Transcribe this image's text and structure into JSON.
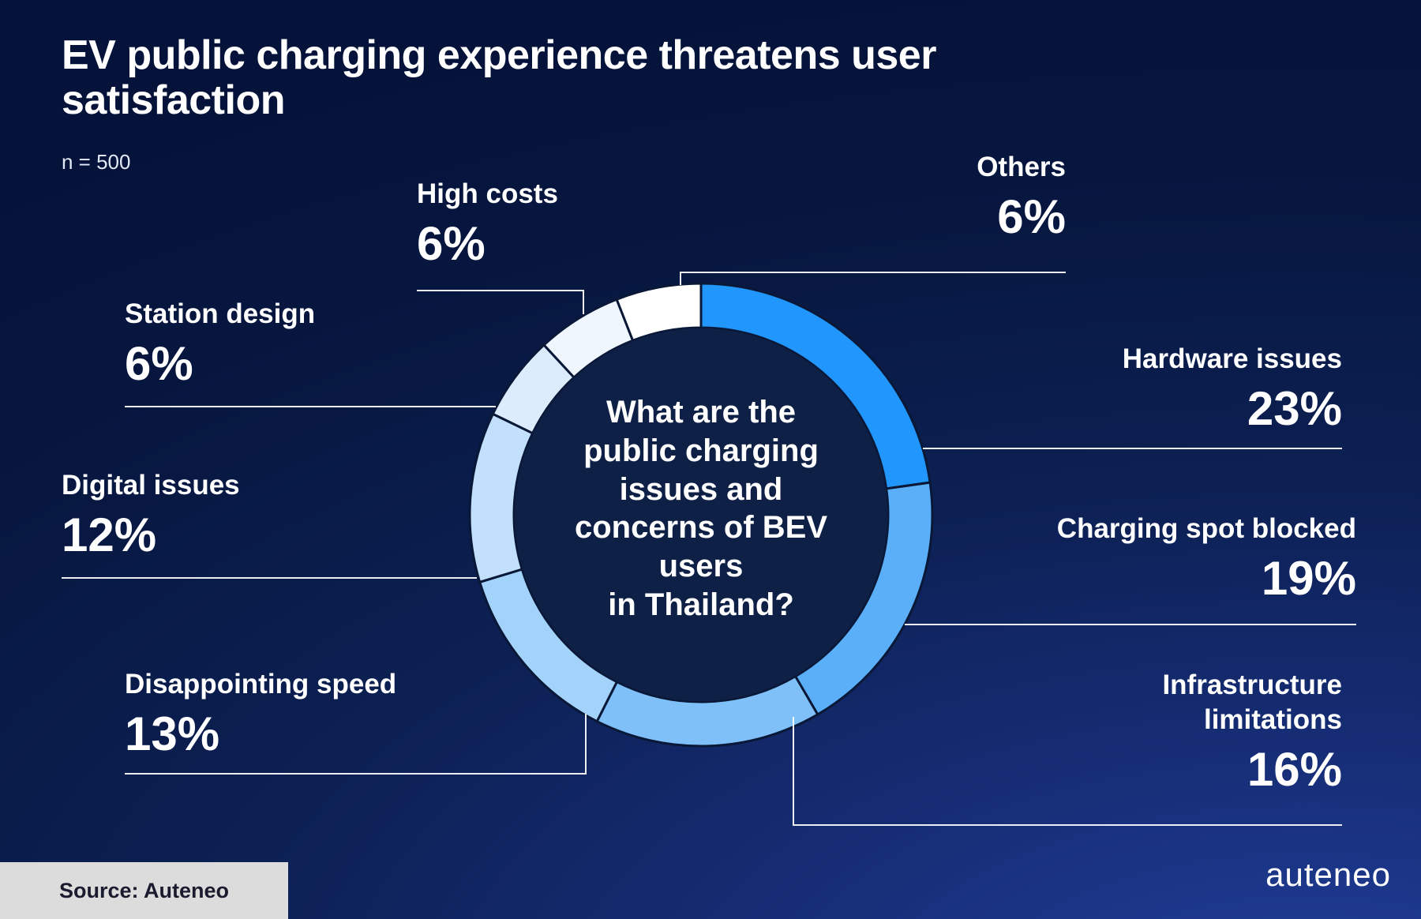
{
  "header": {
    "title": "EV public charging experience threatens user satisfaction",
    "sample_size": "n = 500"
  },
  "center_question": "What are the\npublic charging\nissues and\nconcerns of BEV\nusers\nin Thailand?",
  "footer": {
    "source": "Source: Auteneo",
    "brand_logo": "auteneo"
  },
  "colors": {
    "background_dark": "#05133a",
    "background_bright": "#22419d",
    "segment_border": "#0a1838",
    "inner_disc": "#0f2047",
    "text": "#ffffff",
    "leader_line": "#ffffff",
    "source_box_bg": "#dcdcdc",
    "source_box_text": "#1b1b2f"
  },
  "chart_data": {
    "type": "pie",
    "subtype": "donut",
    "title": "What are the public charging issues and concerns of BEV users in Thailand?",
    "sample_size": 500,
    "start_angle_deg": 0,
    "direction": "clockwise",
    "legend_position": "around-chart-callouts",
    "segments": [
      {
        "label": "Hardware issues",
        "value": 23,
        "pct_label": "23%",
        "color": "#2196FC"
      },
      {
        "label": "Charging spot blocked",
        "value": 19,
        "pct_label": "19%",
        "color": "#5BAEF8"
      },
      {
        "label": "Infrastructure limitations",
        "value": 16,
        "pct_label": "16%",
        "color": "#7FC0F9"
      },
      {
        "label": "Disappointing speed",
        "value": 13,
        "pct_label": "13%",
        "color": "#A3D2FA"
      },
      {
        "label": "Digital issues",
        "value": 12,
        "pct_label": "12%",
        "color": "#C2E0FB"
      },
      {
        "label": "Station design",
        "value": 6,
        "pct_label": "6%",
        "color": "#DCECFD"
      },
      {
        "label": "High costs",
        "value": 6,
        "pct_label": "6%",
        "color": "#EFF6FE"
      },
      {
        "label": "Others",
        "value": 6,
        "pct_label": "6%",
        "color": "#FFFFFF"
      }
    ]
  }
}
